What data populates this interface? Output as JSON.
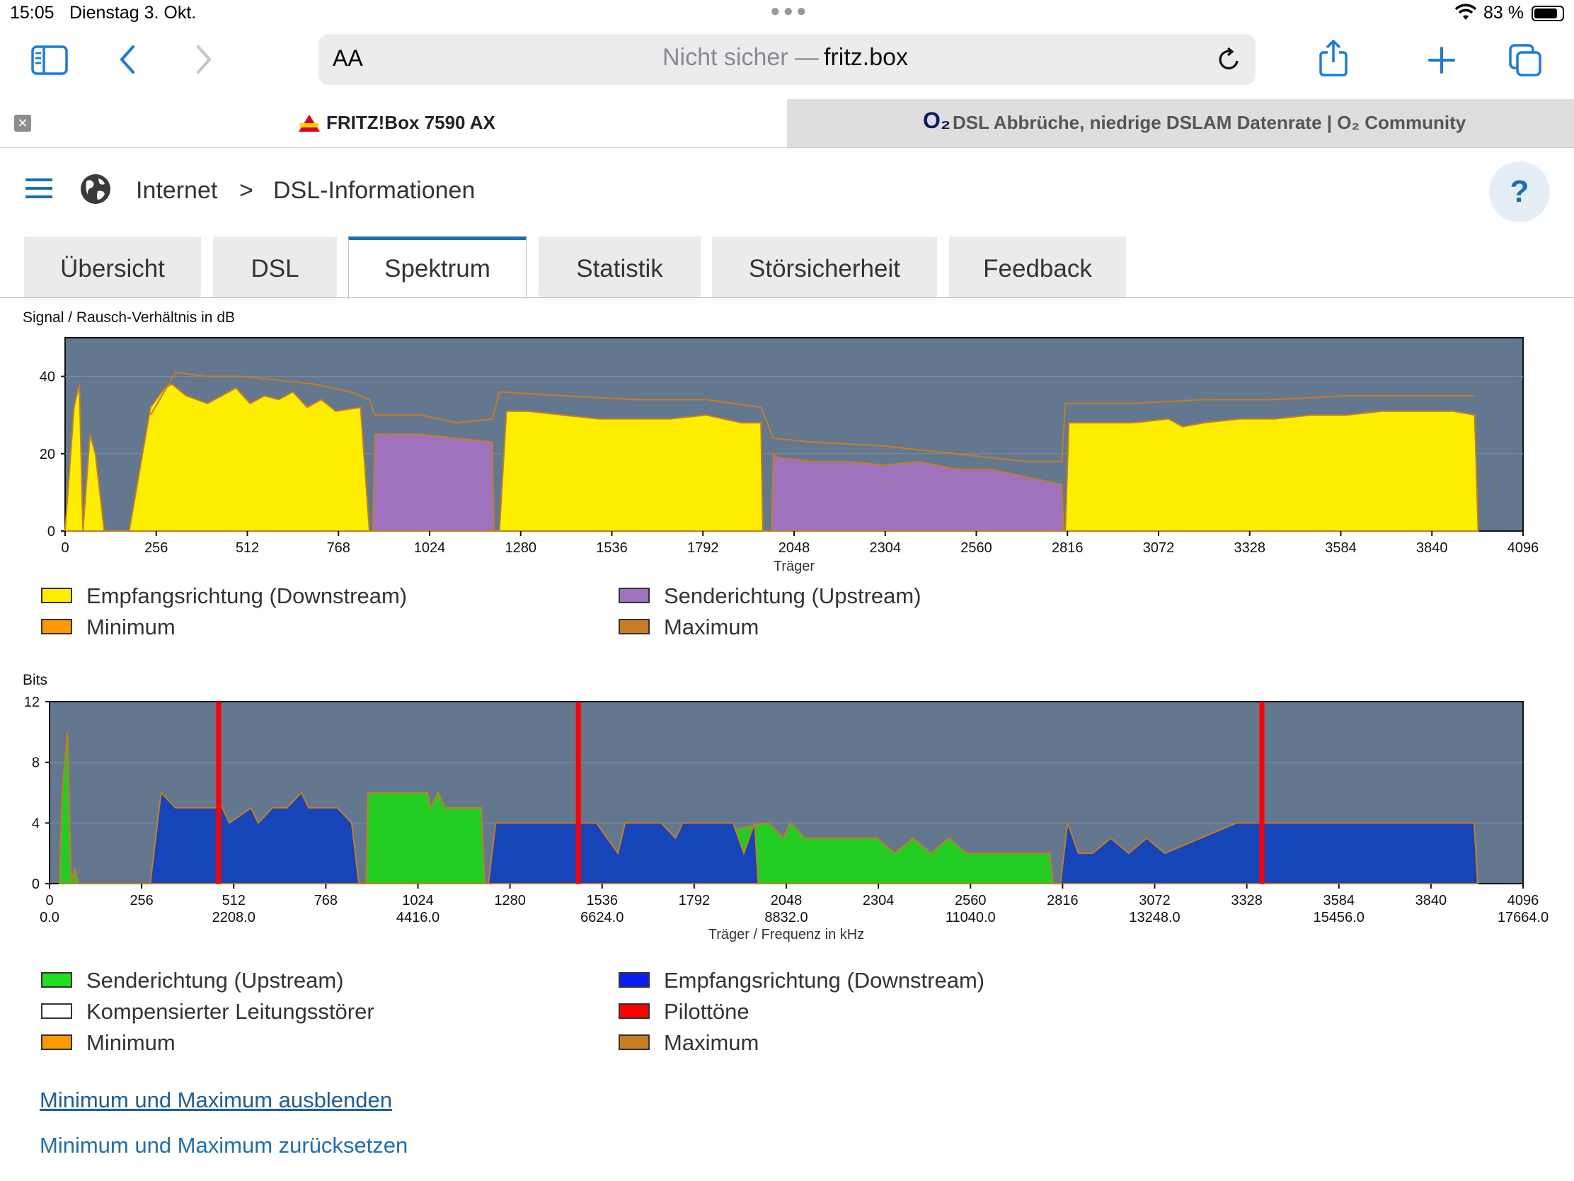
{
  "status_bar": {
    "time": "15:05",
    "date": "Dienstag 3. Okt.",
    "battery": "83 %",
    "battery_level": 0.83
  },
  "browser": {
    "aa_label": "AA",
    "url_prefix": "Nicht sicher — ",
    "url_host": "fritz.box",
    "tabs": [
      {
        "title": "FRITZ!Box 7590 AX"
      },
      {
        "title": "DSL Abbrüche, niedrige DSLAM Datenrate | O₂ Community",
        "logo": "O₂"
      }
    ]
  },
  "header": {
    "breadcrumb": [
      "Internet",
      "DSL-Informationen"
    ],
    "help": "?"
  },
  "tabs": [
    "Übersicht",
    "DSL",
    "Spektrum",
    "Statistik",
    "Störsicherheit",
    "Feedback"
  ],
  "active_tab": "Spektrum",
  "colors": {
    "plot_bg": "#63788f",
    "downstream_yellow": "#ffee00",
    "upstream_purple": "#9e72bd",
    "minimum": "#ff9900",
    "maximum": "#c87c23",
    "upstream_green": "#22cc22",
    "downstream_blue": "#1545b8",
    "pilot_red": "#ff0000",
    "accent": "#1a6fb5"
  },
  "chart_data": [
    {
      "type": "area",
      "ylabel": "Signal / Rausch-Verhältnis in dB",
      "xlabel": "Träger",
      "xlim": [
        0,
        4096
      ],
      "ylim": [
        0,
        50
      ],
      "x_ticks": [
        "0",
        "256",
        "512",
        "768",
        "1024",
        "1280",
        "1536",
        "1792",
        "2048",
        "2304",
        "2560",
        "2816",
        "3072",
        "3328",
        "3584",
        "3840",
        "4096"
      ],
      "y_ticks": [
        "0",
        "20",
        "40"
      ],
      "legend": [
        "Empfangsrichtung (Downstream)",
        "Senderichtung (Upstream)",
        "Minimum",
        "Maximum"
      ],
      "series": [
        {
          "name": "Empfangsrichtung (Downstream)",
          "x": [
            0,
            25,
            40,
            50,
            70,
            85,
            110,
            180,
            240,
            280,
            300,
            340,
            400,
            440,
            480,
            520,
            560,
            600,
            640,
            680,
            720,
            760,
            830,
            855,
            1220,
            1240,
            1300,
            1400,
            1500,
            1600,
            1700,
            1800,
            1900,
            1955,
            1960,
            2810,
            2820,
            2900,
            3000,
            3100,
            3140,
            3200,
            3300,
            3400,
            3500,
            3600,
            3700,
            3800,
            3900,
            3960,
            3970
          ],
          "y": [
            0,
            32,
            38,
            0,
            25,
            20,
            0,
            0,
            32,
            37,
            38,
            35,
            33,
            35,
            37,
            33,
            35,
            34,
            36,
            32,
            34,
            31,
            32,
            0,
            0,
            31,
            31,
            30,
            29,
            29,
            29,
            30,
            28,
            28,
            0,
            0,
            28,
            28,
            28,
            29,
            27,
            28,
            29,
            29,
            30,
            30,
            31,
            31,
            31,
            30,
            0
          ]
        },
        {
          "name": "Senderichtung (Upstream)",
          "x": [
            865,
            870,
            1000,
            1100,
            1200,
            1205,
            1985,
            1990,
            2000,
            2100,
            2200,
            2300,
            2400,
            2500,
            2600,
            2700,
            2800,
            2805
          ],
          "y": [
            0,
            25,
            25,
            24,
            23,
            0,
            0,
            20,
            19,
            18,
            18,
            17,
            18,
            16,
            16,
            14,
            12,
            0
          ]
        },
        {
          "name": "Minimum",
          "x": [
            0,
            4096
          ],
          "y": [
            0,
            0
          ]
        },
        {
          "name": "Maximum",
          "x": [
            240,
            310,
            400,
            500,
            600,
            700,
            800,
            855,
            870,
            1000,
            1100,
            1200,
            1220,
            1400,
            1600,
            1800,
            1955,
            1990,
            2100,
            2300,
            2500,
            2700,
            2800,
            2810,
            3000,
            3200,
            3400,
            3600,
            3800,
            3960
          ],
          "y": [
            30,
            41,
            40,
            40,
            39,
            38,
            36,
            34,
            30,
            30,
            28,
            29,
            36,
            35,
            34,
            34,
            32,
            24,
            23,
            22,
            20,
            18,
            18,
            33,
            33,
            34,
            34,
            35,
            35,
            35
          ]
        }
      ]
    },
    {
      "type": "area",
      "ylabel": "Bits",
      "xlabel": "Träger / Frequenz in kHz",
      "xlim": [
        0,
        4096
      ],
      "ylim": [
        0,
        12
      ],
      "x_ticks": [
        "0",
        "256",
        "512",
        "768",
        "1024",
        "1280",
        "1536",
        "1792",
        "2048",
        "2304",
        "2560",
        "2816",
        "3072",
        "3328",
        "3584",
        "3840",
        "4096"
      ],
      "x_ticks_khz": [
        "0.0",
        "",
        "2208.0",
        "",
        "4416.0",
        "",
        "6624.0",
        "",
        "8832.0",
        "",
        "11040.0",
        "",
        "13248.0",
        "",
        "15456.0",
        "",
        "17664.0"
      ],
      "y_ticks": [
        "0",
        "4",
        "8",
        "12"
      ],
      "legend": [
        "Senderichtung (Upstream)",
        "Empfangsrichtung (Downstream)",
        "Kompensierter Leitungsstörer",
        "Pilottöne",
        "Minimum",
        "Maximum"
      ],
      "series": [
        {
          "name": "Senderichtung (Upstream)",
          "x": [
            28,
            35,
            50,
            60,
            70,
            80,
            880,
            885,
            1050,
            1060,
            1080,
            1100,
            1150,
            1180,
            1200,
            1210,
            1215,
            1990,
            2000,
            2040,
            2060,
            2100,
            2200,
            2300,
            2350,
            2400,
            2450,
            2500,
            2550,
            2600,
            2650,
            2780,
            2790
          ],
          "y": [
            0,
            6,
            10,
            0,
            1,
            0,
            0,
            6,
            6,
            5,
            6,
            5,
            5,
            5,
            5,
            0,
            0,
            4,
            4,
            3,
            4,
            3,
            3,
            3,
            2,
            3,
            2,
            3,
            2,
            2,
            2,
            2,
            0
          ]
        },
        {
          "name": "Empfangsrichtung (Downstream)",
          "x": [
            280,
            310,
            350,
            420,
            480,
            500,
            560,
            580,
            620,
            660,
            700,
            720,
            760,
            800,
            840,
            860,
            1220,
            1240,
            1500,
            1520,
            1580,
            1600,
            1700,
            1740,
            1760,
            1900,
            1930,
            1960,
            1970,
            2810,
            2830,
            2860,
            2900,
            2950,
            3000,
            3050,
            3100,
            3300,
            3400,
            3500,
            3600,
            3700,
            3800,
            3960,
            3970
          ],
          "y": [
            0,
            6,
            5,
            5,
            5,
            4,
            5,
            4,
            5,
            5,
            6,
            5,
            5,
            5,
            4,
            0,
            0,
            4,
            4,
            4,
            2,
            4,
            4,
            3,
            4,
            4,
            2,
            4,
            0,
            0,
            4,
            2,
            2,
            3,
            2,
            3,
            2,
            4,
            4,
            4,
            4,
            4,
            4,
            4,
            0
          ]
        },
        {
          "name": "Pilottöne",
          "x": [
            470,
            1470,
            3370
          ],
          "y": [
            12,
            12,
            12
          ]
        }
      ]
    }
  ],
  "links": [
    "Minimum und Maximum ausblenden",
    "Minimum und Maximum zurücksetzen"
  ]
}
